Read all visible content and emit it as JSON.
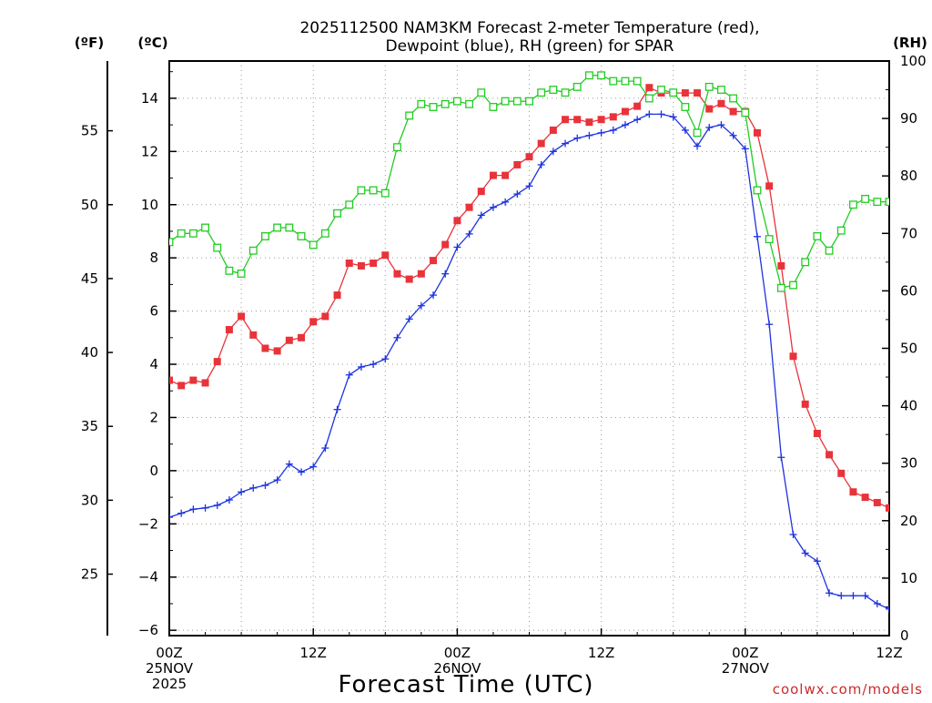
{
  "chart_data": {
    "type": "line",
    "title_line1": "2025112500 NAM3KM Forecast 2-meter Temperature (red),",
    "title_line2": "Dewpoint (blue), RH (green) for SPAR",
    "unit_f": "(ºF)",
    "unit_c": "(ºC)",
    "unit_rh": "(RH)",
    "xlabel": "Forecast Time (UTC)",
    "credit": "coolwx.com/models",
    "x_range_hours": [
      0,
      60
    ],
    "y_c_range": [
      -6.2,
      15.4
    ],
    "y_rh_range": [
      0,
      100
    ],
    "y_c_ticks": [
      "-6",
      "-4",
      "-2",
      "0",
      "2",
      "4",
      "6",
      "8",
      "10",
      "12",
      "14"
    ],
    "y_f_ticks": [
      "25",
      "30",
      "35",
      "40",
      "45",
      "50",
      "55"
    ],
    "y_rh_ticks": [
      "0",
      "10",
      "20",
      "30",
      "40",
      "50",
      "60",
      "70",
      "80",
      "90",
      "100"
    ],
    "x_ticks": [
      {
        "hour": 0,
        "line1": "00Z",
        "line2": "25NOV",
        "line3": "2025"
      },
      {
        "hour": 12,
        "line1": "12Z",
        "line2": "",
        "line3": ""
      },
      {
        "hour": 24,
        "line1": "00Z",
        "line2": "26NOV",
        "line3": ""
      },
      {
        "hour": 36,
        "line1": "12Z",
        "line2": "",
        "line3": ""
      },
      {
        "hour": 48,
        "line1": "00Z",
        "line2": "27NOV",
        "line3": ""
      },
      {
        "hour": 60,
        "line1": "12Z",
        "line2": "",
        "line3": ""
      }
    ],
    "series": [
      {
        "name": "Temperature",
        "units": "C",
        "color": "#e8333a",
        "marker": "filled-square",
        "hours": [
          0,
          1,
          2,
          3,
          4,
          5,
          6,
          7,
          8,
          9,
          10,
          11,
          12,
          13,
          14,
          15,
          16,
          17,
          18,
          19,
          20,
          21,
          22,
          23,
          24,
          25,
          26,
          27,
          28,
          29,
          30,
          31,
          32,
          33,
          34,
          35,
          36,
          37,
          38,
          39,
          40,
          41,
          42,
          43,
          44,
          45,
          46,
          47,
          48,
          49,
          50,
          51,
          52,
          53,
          54,
          55,
          56,
          57,
          58,
          59,
          60
        ],
        "values": [
          3.4,
          3.2,
          3.4,
          3.3,
          4.1,
          5.3,
          5.8,
          5.1,
          4.6,
          4.5,
          4.9,
          5.0,
          5.6,
          5.8,
          6.6,
          7.8,
          7.7,
          7.8,
          8.1,
          7.4,
          7.2,
          7.4,
          7.9,
          8.5,
          9.4,
          9.9,
          10.5,
          11.1,
          11.1,
          11.5,
          11.8,
          12.3,
          12.8,
          13.2,
          13.2,
          13.1,
          13.2,
          13.3,
          13.5,
          13.7,
          14.4,
          14.2,
          14.2,
          14.2,
          14.2,
          13.6,
          13.8,
          13.5,
          13.5,
          12.7,
          10.7,
          7.7,
          4.3,
          2.5,
          1.4,
          0.6,
          -0.1,
          -0.8,
          -1.0,
          -1.2,
          -1.4
        ]
      },
      {
        "name": "Dewpoint",
        "units": "C",
        "color": "#1d33e0",
        "marker": "plus",
        "hours": [
          0,
          1,
          2,
          3,
          4,
          5,
          6,
          7,
          8,
          9,
          10,
          11,
          12,
          13,
          14,
          15,
          16,
          17,
          18,
          19,
          20,
          21,
          22,
          23,
          24,
          25,
          26,
          27,
          28,
          29,
          30,
          31,
          32,
          33,
          34,
          35,
          36,
          37,
          38,
          39,
          40,
          41,
          42,
          43,
          44,
          45,
          46,
          47,
          48,
          49,
          50,
          51,
          52,
          53,
          54,
          55,
          56,
          57,
          58,
          59,
          60
        ],
        "values": [
          -1.75,
          -1.6,
          -1.45,
          -1.4,
          -1.3,
          -1.1,
          -0.8,
          -0.65,
          -0.55,
          -0.35,
          0.25,
          -0.05,
          0.15,
          0.85,
          2.3,
          3.6,
          3.9,
          4.0,
          4.2,
          5.0,
          5.7,
          6.2,
          6.6,
          7.4,
          8.4,
          8.9,
          9.6,
          9.9,
          10.1,
          10.4,
          10.7,
          11.5,
          12.0,
          12.3,
          12.5,
          12.6,
          12.7,
          12.8,
          13.0,
          13.2,
          13.4,
          13.4,
          13.3,
          12.8,
          12.2,
          12.9,
          13.0,
          12.6,
          12.1,
          8.8,
          5.5,
          0.5,
          -2.4,
          -3.1,
          -3.4,
          -4.6,
          -4.7,
          -4.7,
          -4.7,
          -5.0,
          -5.2
        ]
      },
      {
        "name": "RH",
        "units": "%",
        "color": "#22cc22",
        "marker": "open-square",
        "hours": [
          0,
          1,
          2,
          3,
          4,
          5,
          6,
          7,
          8,
          9,
          10,
          11,
          12,
          13,
          14,
          15,
          16,
          17,
          18,
          19,
          20,
          21,
          22,
          23,
          24,
          25,
          26,
          27,
          28,
          29,
          30,
          31,
          32,
          33,
          34,
          35,
          36,
          37,
          38,
          39,
          40,
          41,
          42,
          43,
          44,
          45,
          46,
          47,
          48,
          49,
          50,
          51,
          52,
          53,
          54,
          55,
          56,
          57,
          58,
          59,
          60
        ],
        "values": [
          68.5,
          70,
          70,
          71,
          67.5,
          63.5,
          63,
          67,
          69.5,
          71,
          71,
          69.5,
          68,
          70,
          73.5,
          75,
          77.5,
          77.5,
          77,
          85,
          90.5,
          92.5,
          92,
          92.5,
          93,
          92.5,
          94.5,
          92,
          93,
          93,
          93,
          94.5,
          95,
          94.5,
          95.5,
          97.5,
          97.5,
          96.5,
          96.5,
          96.5,
          93.5,
          95,
          94.5,
          92,
          87.5,
          95.5,
          95,
          93.5,
          91,
          77.5,
          69,
          60.5,
          61,
          65,
          69.5,
          67,
          70.5,
          75,
          76,
          75.5,
          75.5
        ]
      }
    ]
  }
}
